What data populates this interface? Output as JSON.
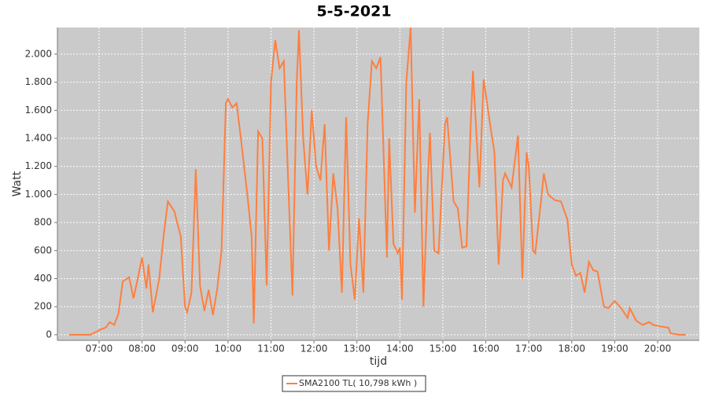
{
  "chart_data": {
    "type": "line",
    "title": "5-5-2021",
    "x_label": "tijd",
    "y_label": "Watt",
    "xlim": [
      6.03,
      20.97
    ],
    "xticks": [
      {
        "value": 7,
        "label": "07:00"
      },
      {
        "value": 8,
        "label": "08:00"
      },
      {
        "value": 9,
        "label": "09:00"
      },
      {
        "value": 10,
        "label": "10:00"
      },
      {
        "value": 11,
        "label": "11:00"
      },
      {
        "value": 12,
        "label": "12:00"
      },
      {
        "value": 13,
        "label": "13:00"
      },
      {
        "value": 14,
        "label": "14:00"
      },
      {
        "value": 15,
        "label": "15:00"
      },
      {
        "value": 16,
        "label": "16:00"
      },
      {
        "value": 17,
        "label": "17:00"
      },
      {
        "value": 18,
        "label": "18:00"
      },
      {
        "value": 19,
        "label": "19:00"
      },
      {
        "value": 20,
        "label": "20:00"
      }
    ],
    "ylim": [
      -40,
      2190
    ],
    "yticks": [
      0,
      200,
      400,
      600,
      800,
      {
        "value": 1000,
        "label": "1.000"
      },
      {
        "value": 1200,
        "label": "1.200"
      },
      {
        "value": 1400,
        "label": "1.400"
      },
      {
        "value": 1600,
        "label": "1.600"
      },
      {
        "value": 1800,
        "label": "1.800"
      },
      {
        "value": 2000,
        "label": "2.000"
      }
    ],
    "grid": true,
    "x": [
      6.3,
      6.5,
      6.8,
      7.05,
      7.15,
      7.25,
      7.35,
      7.45,
      7.55,
      7.7,
      7.8,
      7.9,
      8.0,
      8.1,
      8.15,
      8.25,
      8.4,
      8.5,
      8.6,
      8.75,
      8.9,
      9.0,
      9.05,
      9.15,
      9.25,
      9.35,
      9.45,
      9.55,
      9.65,
      9.75,
      9.85,
      9.95,
      10.0,
      10.1,
      10.2,
      10.3,
      10.45,
      10.55,
      10.6,
      10.7,
      10.8,
      10.9,
      11.0,
      11.1,
      11.2,
      11.3,
      11.4,
      11.5,
      11.6,
      11.65,
      11.75,
      11.85,
      11.95,
      12.05,
      12.15,
      12.25,
      12.35,
      12.45,
      12.55,
      12.65,
      12.75,
      12.85,
      12.95,
      13.05,
      13.15,
      13.25,
      13.35,
      13.45,
      13.55,
      13.7,
      13.75,
      13.85,
      13.95,
      14.0,
      14.05,
      14.15,
      14.25,
      14.35,
      14.45,
      14.55,
      14.65,
      14.7,
      14.8,
      14.9,
      15.05,
      15.1,
      15.25,
      15.35,
      15.45,
      15.55,
      15.65,
      15.7,
      15.85,
      15.95,
      16.1,
      16.2,
      16.3,
      16.4,
      16.45,
      16.6,
      16.75,
      16.85,
      16.95,
      17.0,
      17.1,
      17.15,
      17.3,
      17.35,
      17.45,
      17.6,
      17.75,
      17.9,
      18.0,
      18.1,
      18.2,
      18.3,
      18.4,
      18.5,
      18.6,
      18.75,
      18.85,
      19.0,
      19.15,
      19.3,
      19.35,
      19.5,
      19.65,
      19.8,
      19.9,
      20.05,
      20.25,
      20.3,
      20.5,
      20.65
    ],
    "series": [
      {
        "name": "SMA2100 TL( 10,798 kWh )",
        "color": "#ff7f3f",
        "values": [
          0,
          0,
          0,
          40,
          50,
          90,
          70,
          150,
          380,
          410,
          260,
          400,
          550,
          330,
          500,
          160,
          400,
          700,
          950,
          880,
          700,
          200,
          160,
          300,
          1180,
          350,
          170,
          320,
          140,
          330,
          600,
          1650,
          1680,
          1620,
          1650,
          1400,
          1000,
          700,
          80,
          1450,
          1400,
          350,
          1800,
          2100,
          1900,
          1950,
          1100,
          280,
          1800,
          2170,
          1400,
          1000,
          1600,
          1200,
          1100,
          1500,
          600,
          1150,
          900,
          300,
          1550,
          500,
          250,
          830,
          300,
          1500,
          1950,
          1900,
          1980,
          550,
          1400,
          650,
          580,
          620,
          250,
          1800,
          2190,
          870,
          1680,
          200,
          1100,
          1440,
          600,
          580,
          1500,
          1550,
          950,
          900,
          620,
          630,
          1500,
          1880,
          1050,
          1820,
          1500,
          1300,
          500,
          1100,
          1150,
          1050,
          1420,
          400,
          1300,
          1200,
          600,
          580,
          1000,
          1150,
          1000,
          960,
          950,
          820,
          500,
          420,
          440,
          300,
          520,
          460,
          450,
          200,
          190,
          240,
          190,
          120,
          190,
          100,
          70,
          90,
          70,
          60,
          50,
          10,
          0,
          0
        ]
      }
    ]
  }
}
